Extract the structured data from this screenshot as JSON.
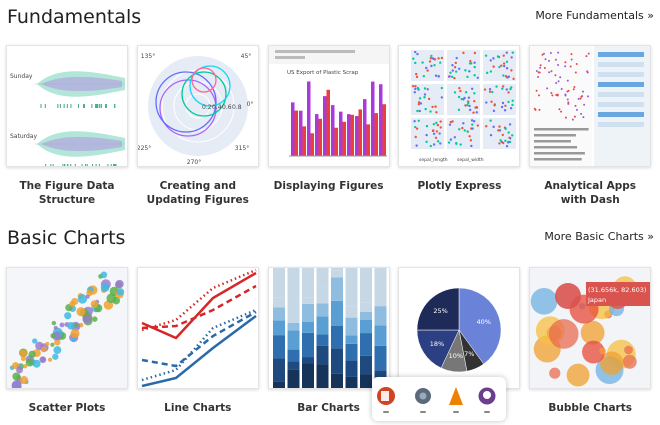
{
  "sections": [
    {
      "title": "Fundamentals",
      "more": "More Fundamentals »",
      "cards": [
        {
          "label": "The Figure Data Structure",
          "thumb": {
            "texts": [
              "Sunday",
              "Saturday"
            ]
          }
        },
        {
          "label": "Creating and Updating Figures",
          "thumb": {
            "texts": [
              "135°",
              "45°",
              "0°",
              "225°",
              "270°",
              "315°",
              "0.2",
              "0.4",
              "0.6",
              "0.8"
            ]
          }
        },
        {
          "label": "Displaying Figures",
          "thumb": {
            "texts": [
              "US Export of Plastic Scrap"
            ]
          }
        },
        {
          "label": "Plotly Express",
          "thumb": {
            "texts": [
              "sepal_length",
              "sepal_width"
            ]
          }
        },
        {
          "label": "Analytical Apps with Dash",
          "thumb": {
            "texts": []
          }
        }
      ]
    },
    {
      "title": "Basic Charts",
      "more": "More Basic Charts »",
      "cards": [
        {
          "label": "Scatter Plots",
          "thumb": {
            "texts": []
          }
        },
        {
          "label": "Line Charts",
          "thumb": {
            "texts": []
          }
        },
        {
          "label": "Bar Charts",
          "thumb": {
            "texts": []
          }
        },
        {
          "label": "Pie Charts",
          "thumb": {
            "texts": [
              "25%",
              "40%",
              "18%",
              "10%",
              "7%"
            ]
          }
        },
        {
          "label": "Bubble Charts",
          "thumb": {
            "texts": [
              "(31.656k, 82.603)",
              "Japan"
            ]
          }
        }
      ]
    }
  ]
}
